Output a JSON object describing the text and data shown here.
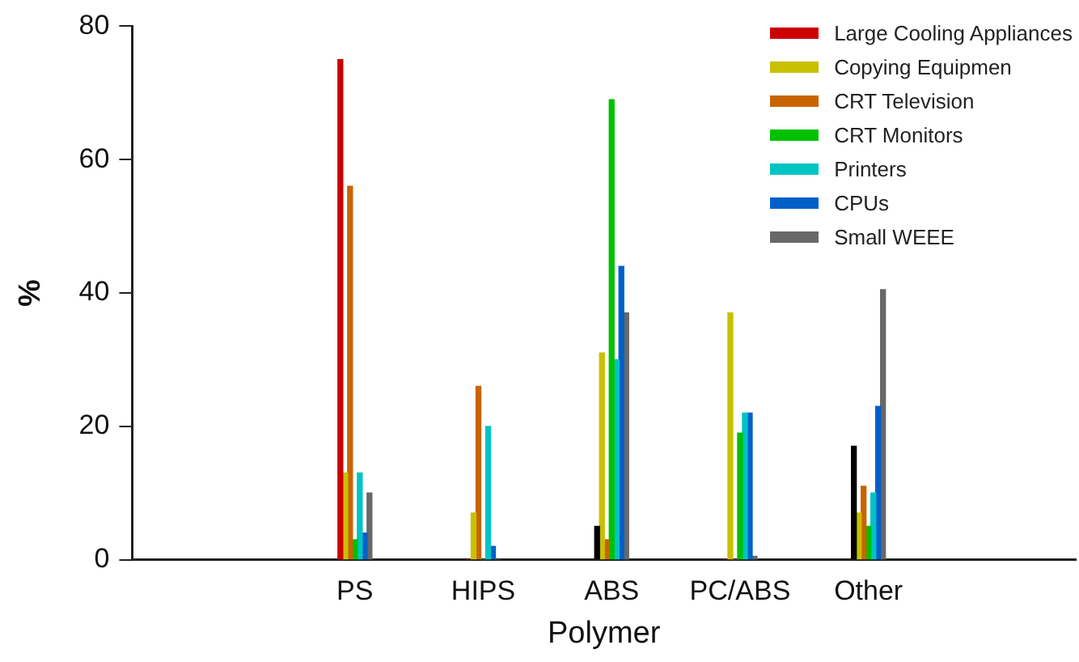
{
  "chart_data": {
    "type": "bar",
    "xlabel": "Polymer",
    "ylabel": "%",
    "categories": [
      "PS",
      "HIPS",
      "ABS",
      "PC/ABS",
      "Other"
    ],
    "ylim": [
      0,
      80
    ],
    "yticks": [
      0,
      20,
      40,
      60,
      80
    ],
    "grid": false,
    "legend": "top right",
    "series": [
      {
        "name": "Large Cooling Appliances",
        "color": "#cc0000",
        "colors": [
          "#cc0000",
          "#cc0000",
          "#000000",
          "#cc0000",
          "#000000"
        ],
        "values": [
          75,
          0,
          5,
          0,
          17
        ]
      },
      {
        "name": "Copying Equipmen",
        "color": "#c8c000",
        "values": [
          13,
          7,
          31,
          37,
          7
        ]
      },
      {
        "name": "CRT Television",
        "color": "#c86400",
        "values": [
          56,
          26,
          3,
          0,
          11
        ]
      },
      {
        "name": "CRT Monitors",
        "color": "#00c000",
        "values": [
          3,
          0,
          69,
          19,
          5
        ]
      },
      {
        "name": "Printers",
        "color": "#00c4c4",
        "values": [
          13,
          20,
          30,
          22,
          10
        ]
      },
      {
        "name": "CPUs",
        "color": "#0060c8",
        "values": [
          4,
          2,
          44,
          22,
          23
        ]
      },
      {
        "name": "Small WEEE",
        "color": "#686868",
        "values": [
          10,
          0,
          37,
          0.5,
          40.5
        ]
      }
    ]
  }
}
